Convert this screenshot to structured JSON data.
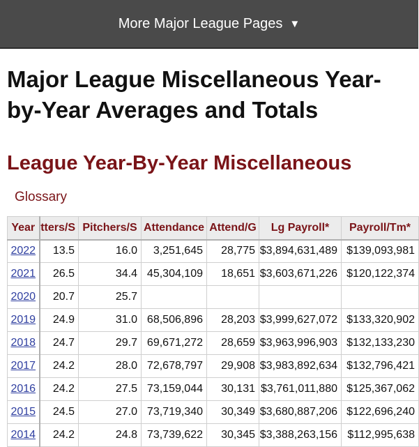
{
  "nav": {
    "label": "More Major League Pages",
    "arrow": "▼"
  },
  "page_title": "Major League Miscellaneous Year-by-Year Averages and Totals",
  "section_title": "League Year-By-Year Miscellaneous",
  "glossary": "Glossary",
  "table": {
    "headers": [
      "Year",
      "tters/S",
      "Pitchers/S",
      "Attendance",
      "Attend/G",
      "Lg Payroll*",
      "Payroll/Tm*"
    ],
    "rows": [
      [
        "2022",
        "13.5",
        "16.0",
        "3,251,645",
        "28,775",
        "$3,894,631,489",
        "$139,093,981"
      ],
      [
        "2021",
        "26.5",
        "34.4",
        "45,304,109",
        "18,651",
        "$3,603,671,226",
        "$120,122,374"
      ],
      [
        "2020",
        "20.7",
        "25.7",
        "",
        "",
        "",
        ""
      ],
      [
        "2019",
        "24.9",
        "31.0",
        "68,506,896",
        "28,203",
        "$3,999,627,072",
        "$133,320,902"
      ],
      [
        "2018",
        "24.7",
        "29.7",
        "69,671,272",
        "28,659",
        "$3,963,996,903",
        "$132,133,230"
      ],
      [
        "2017",
        "24.2",
        "28.0",
        "72,678,797",
        "29,908",
        "$3,983,892,634",
        "$132,796,421"
      ],
      [
        "2016",
        "24.2",
        "27.5",
        "73,159,044",
        "30,131",
        "$3,761,011,880",
        "$125,367,062"
      ],
      [
        "2015",
        "24.5",
        "27.0",
        "73,719,340",
        "30,349",
        "$3,680,887,206",
        "$122,696,240"
      ],
      [
        "2014",
        "24.2",
        "24.8",
        "73,739,622",
        "30,345",
        "$3,388,263,156",
        "$112,995,638"
      ]
    ]
  }
}
